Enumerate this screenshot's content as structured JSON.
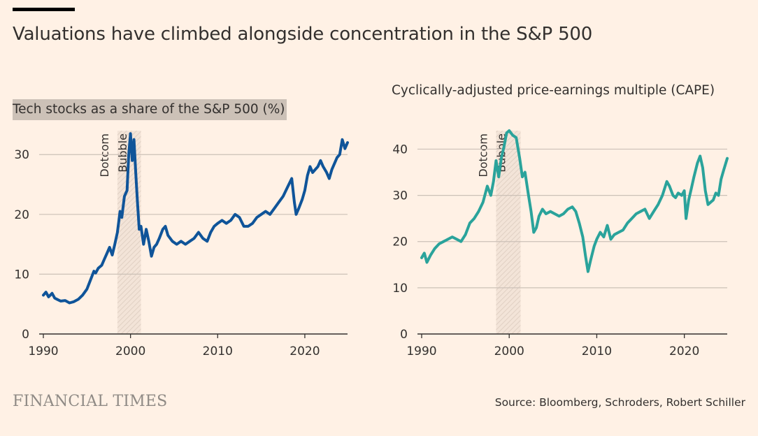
{
  "title": "Valuations have climbed alongside concentration in the S&P 500",
  "footer": {
    "brand": "FINANCIAL TIMES",
    "source": "Source: Bloomberg, Schroders, Robert Schiller"
  },
  "colors": {
    "background": "#fff1e5",
    "tech_line": "#0f5499",
    "cape_line": "#2aa39b",
    "grid": "#ccc1b7",
    "axis": "#33302e"
  },
  "chart_data": [
    {
      "type": "line",
      "title": "Tech stocks as a share of the S&P 500 (%)",
      "title_highlighted": true,
      "xlim": [
        1990,
        2024.9
      ],
      "ylim": [
        0,
        34
      ],
      "yticks": [
        0,
        10,
        20,
        30
      ],
      "xticks": [
        1990,
        2000,
        2010,
        2020
      ],
      "grid": true,
      "shaded_region": {
        "from": 1998.5,
        "to": 2001.2,
        "label": [
          "Dotcom",
          "Bubble"
        ]
      },
      "series": [
        {
          "color": "#0f5499",
          "points": [
            [
              1990.0,
              6.5
            ],
            [
              1990.3,
              7.0
            ],
            [
              1990.6,
              6.2
            ],
            [
              1991.0,
              6.8
            ],
            [
              1991.3,
              6.0
            ],
            [
              1991.7,
              5.7
            ],
            [
              1992.0,
              5.5
            ],
            [
              1992.5,
              5.6
            ],
            [
              1993.0,
              5.2
            ],
            [
              1993.5,
              5.4
            ],
            [
              1994.0,
              5.8
            ],
            [
              1994.5,
              6.5
            ],
            [
              1995.0,
              7.5
            ],
            [
              1995.4,
              9.0
            ],
            [
              1995.8,
              10.5
            ],
            [
              1996.0,
              10.2
            ],
            [
              1996.3,
              11.0
            ],
            [
              1996.7,
              11.5
            ],
            [
              1997.0,
              12.5
            ],
            [
              1997.3,
              13.5
            ],
            [
              1997.6,
              14.5
            ],
            [
              1997.9,
              13.2
            ],
            [
              1998.2,
              15.0
            ],
            [
              1998.5,
              17.0
            ],
            [
              1998.8,
              20.5
            ],
            [
              1999.0,
              19.5
            ],
            [
              1999.3,
              23.0
            ],
            [
              1999.6,
              24.0
            ],
            [
              1999.8,
              30.0
            ],
            [
              2000.0,
              33.5
            ],
            [
              2000.2,
              29.0
            ],
            [
              2000.4,
              32.5
            ],
            [
              2000.6,
              27.0
            ],
            [
              2000.8,
              22.0
            ],
            [
              2001.0,
              17.5
            ],
            [
              2001.2,
              18.0
            ],
            [
              2001.5,
              15.0
            ],
            [
              2001.8,
              17.5
            ],
            [
              2002.1,
              15.5
            ],
            [
              2002.4,
              13.0
            ],
            [
              2002.7,
              14.5
            ],
            [
              2003.0,
              15.0
            ],
            [
              2003.3,
              16.0
            ],
            [
              2003.7,
              17.5
            ],
            [
              2004.0,
              18.0
            ],
            [
              2004.3,
              16.5
            ],
            [
              2004.8,
              15.5
            ],
            [
              2005.3,
              15.0
            ],
            [
              2005.8,
              15.5
            ],
            [
              2006.3,
              15.0
            ],
            [
              2006.8,
              15.5
            ],
            [
              2007.3,
              16.0
            ],
            [
              2007.8,
              17.0
            ],
            [
              2008.3,
              16.0
            ],
            [
              2008.8,
              15.5
            ],
            [
              2009.2,
              17.0
            ],
            [
              2009.6,
              18.0
            ],
            [
              2010.0,
              18.5
            ],
            [
              2010.5,
              19.0
            ],
            [
              2011.0,
              18.5
            ],
            [
              2011.5,
              19.0
            ],
            [
              2012.0,
              20.0
            ],
            [
              2012.5,
              19.5
            ],
            [
              2013.0,
              18.0
            ],
            [
              2013.5,
              18.0
            ],
            [
              2014.0,
              18.5
            ],
            [
              2014.5,
              19.5
            ],
            [
              2015.0,
              20.0
            ],
            [
              2015.5,
              20.5
            ],
            [
              2016.0,
              20.0
            ],
            [
              2016.5,
              21.0
            ],
            [
              2017.0,
              22.0
            ],
            [
              2017.5,
              23.0
            ],
            [
              2018.0,
              24.5
            ],
            [
              2018.5,
              26.0
            ],
            [
              2018.8,
              22.0
            ],
            [
              2019.0,
              20.0
            ],
            [
              2019.3,
              21.0
            ],
            [
              2019.7,
              22.5
            ],
            [
              2020.0,
              24.0
            ],
            [
              2020.3,
              26.5
            ],
            [
              2020.6,
              28.0
            ],
            [
              2020.9,
              27.0
            ],
            [
              2021.2,
              27.5
            ],
            [
              2021.5,
              28.0
            ],
            [
              2021.8,
              29.0
            ],
            [
              2022.1,
              28.0
            ],
            [
              2022.5,
              27.0
            ],
            [
              2022.8,
              26.0
            ],
            [
              2023.1,
              27.5
            ],
            [
              2023.4,
              28.5
            ],
            [
              2023.7,
              29.5
            ],
            [
              2024.0,
              30.0
            ],
            [
              2024.3,
              32.5
            ],
            [
              2024.6,
              31.0
            ],
            [
              2024.9,
              32.0
            ]
          ]
        }
      ]
    },
    {
      "type": "line",
      "title": "Cyclically-adjusted price-earnings multiple (CAPE)",
      "title_highlighted": false,
      "xlim": [
        1990,
        2024.9
      ],
      "ylim": [
        0,
        44
      ],
      "yticks": [
        0,
        10,
        20,
        30,
        40
      ],
      "xticks": [
        1990,
        2000,
        2010,
        2020
      ],
      "grid": true,
      "shaded_region": {
        "from": 1998.5,
        "to": 2001.3,
        "label": [
          "Dotcom",
          "Bubble"
        ]
      },
      "series": [
        {
          "color": "#2aa39b",
          "points": [
            [
              1990.0,
              16.5
            ],
            [
              1990.3,
              17.5
            ],
            [
              1990.6,
              15.5
            ],
            [
              1991.0,
              17.0
            ],
            [
              1991.5,
              18.5
            ],
            [
              1992.0,
              19.5
            ],
            [
              1992.5,
              20.0
            ],
            [
              1993.0,
              20.5
            ],
            [
              1993.5,
              21.0
            ],
            [
              1994.0,
              20.5
            ],
            [
              1994.5,
              20.0
            ],
            [
              1995.0,
              21.5
            ],
            [
              1995.5,
              24.0
            ],
            [
              1996.0,
              25.0
            ],
            [
              1996.5,
              26.5
            ],
            [
              1997.0,
              28.5
            ],
            [
              1997.5,
              32.0
            ],
            [
              1997.9,
              30.0
            ],
            [
              1998.2,
              33.0
            ],
            [
              1998.5,
              37.5
            ],
            [
              1998.8,
              34.0
            ],
            [
              1999.1,
              38.0
            ],
            [
              1999.4,
              40.5
            ],
            [
              1999.7,
              43.5
            ],
            [
              2000.0,
              44.0
            ],
            [
              2000.4,
              43.0
            ],
            [
              2000.8,
              42.5
            ],
            [
              2001.2,
              38.0
            ],
            [
              2001.5,
              34.0
            ],
            [
              2001.8,
              35.0
            ],
            [
              2002.2,
              30.0
            ],
            [
              2002.5,
              26.5
            ],
            [
              2002.8,
              22.0
            ],
            [
              2003.1,
              23.0
            ],
            [
              2003.4,
              25.5
            ],
            [
              2003.8,
              27.0
            ],
            [
              2004.2,
              26.0
            ],
            [
              2004.7,
              26.5
            ],
            [
              2005.2,
              26.0
            ],
            [
              2005.7,
              25.5
            ],
            [
              2006.2,
              26.0
            ],
            [
              2006.7,
              27.0
            ],
            [
              2007.2,
              27.5
            ],
            [
              2007.6,
              26.5
            ],
            [
              2008.0,
              24.0
            ],
            [
              2008.4,
              21.0
            ],
            [
              2008.7,
              17.0
            ],
            [
              2009.0,
              13.5
            ],
            [
              2009.3,
              16.0
            ],
            [
              2009.7,
              19.0
            ],
            [
              2010.0,
              20.5
            ],
            [
              2010.4,
              22.0
            ],
            [
              2010.8,
              21.0
            ],
            [
              2011.2,
              23.5
            ],
            [
              2011.6,
              20.5
            ],
            [
              2012.0,
              21.5
            ],
            [
              2012.5,
              22.0
            ],
            [
              2013.0,
              22.5
            ],
            [
              2013.5,
              24.0
            ],
            [
              2014.0,
              25.0
            ],
            [
              2014.5,
              26.0
            ],
            [
              2015.0,
              26.5
            ],
            [
              2015.5,
              27.0
            ],
            [
              2016.0,
              25.0
            ],
            [
              2016.5,
              26.5
            ],
            [
              2017.0,
              28.0
            ],
            [
              2017.5,
              30.0
            ],
            [
              2018.0,
              33.0
            ],
            [
              2018.3,
              32.0
            ],
            [
              2018.7,
              30.0
            ],
            [
              2019.0,
              29.5
            ],
            [
              2019.3,
              30.5
            ],
            [
              2019.7,
              30.0
            ],
            [
              2020.0,
              31.0
            ],
            [
              2020.2,
              25.0
            ],
            [
              2020.5,
              29.0
            ],
            [
              2020.8,
              31.5
            ],
            [
              2021.1,
              34.0
            ],
            [
              2021.5,
              37.0
            ],
            [
              2021.8,
              38.5
            ],
            [
              2022.1,
              36.0
            ],
            [
              2022.4,
              31.0
            ],
            [
              2022.7,
              28.0
            ],
            [
              2023.0,
              28.5
            ],
            [
              2023.3,
              29.0
            ],
            [
              2023.6,
              30.5
            ],
            [
              2023.9,
              30.0
            ],
            [
              2024.2,
              33.5
            ],
            [
              2024.5,
              35.5
            ],
            [
              2024.9,
              38.0
            ]
          ]
        }
      ]
    }
  ]
}
